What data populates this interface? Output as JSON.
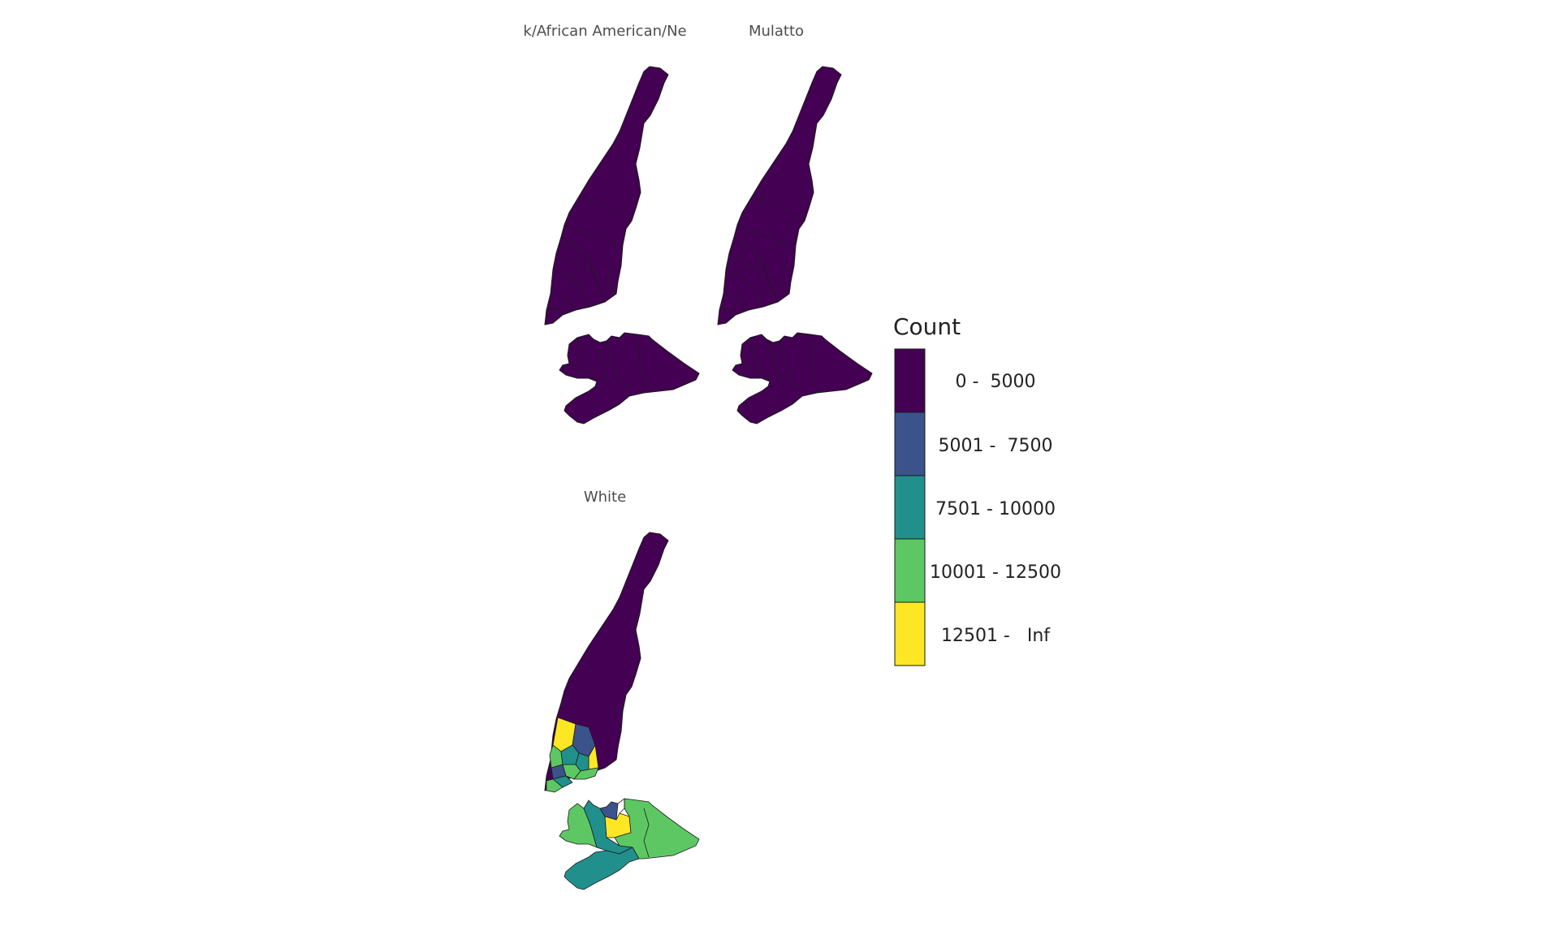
{
  "legend": {
    "title": "Count",
    "bins": [
      {
        "label": "0 -  5000",
        "color": "#440154"
      },
      {
        "label": "5001 -  7500",
        "color": "#3B528B"
      },
      {
        "label": "7501 - 10000",
        "color": "#21908C"
      },
      {
        "label": "10001 - 12500",
        "color": "#5DC863"
      },
      {
        "label": "12501 -   Inf",
        "color": "#FDE725"
      }
    ]
  },
  "facets": [
    {
      "title": "k/African American/Ne",
      "fill": "uniform-bin-0"
    },
    {
      "title": "Mulatto",
      "fill": "uniform-bin-0"
    },
    {
      "title": "White",
      "fill": "by-district"
    }
  ],
  "colors": {
    "border": "#1a1a1a",
    "background": "#ffffff"
  }
}
